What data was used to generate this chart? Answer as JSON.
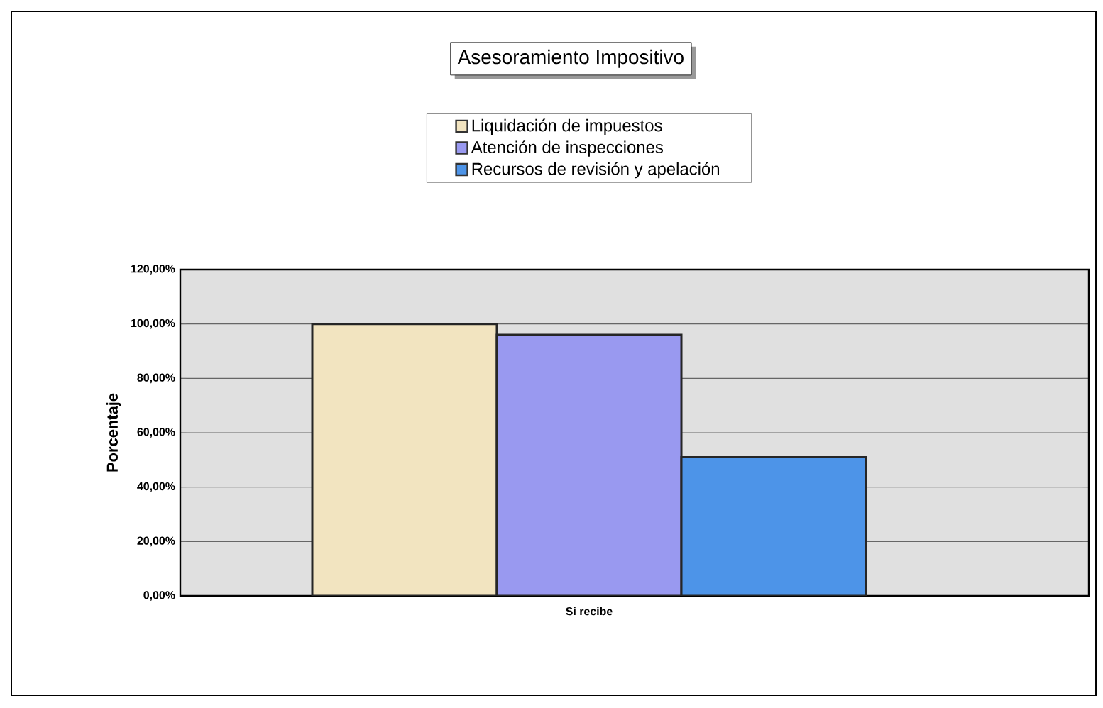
{
  "chart_data": {
    "type": "bar",
    "title": "Asesoramiento Impositivo",
    "ylabel": "Porcentaje",
    "categories": [
      "Si recibe"
    ],
    "series": [
      {
        "name": "Liquidación de impuestos",
        "color": "#f2e4c0",
        "values": [
          100
        ]
      },
      {
        "name": "Atención de inspecciones",
        "color": "#9999f0",
        "values": [
          96
        ]
      },
      {
        "name": "Recursos de revisión y apelación",
        "color": "#4d94e8",
        "values": [
          51
        ]
      }
    ],
    "ylim": [
      0,
      120
    ],
    "yticks": [
      {
        "value": 0,
        "label": "0,00%"
      },
      {
        "value": 20,
        "label": "20,00%"
      },
      {
        "value": 40,
        "label": "40,00%"
      },
      {
        "value": 60,
        "label": "60,00%"
      },
      {
        "value": 80,
        "label": "80,00%"
      },
      {
        "value": 100,
        "label": "100,00%"
      },
      {
        "value": 120,
        "label": "120,00%"
      }
    ],
    "grid": "y",
    "legend": "top"
  }
}
